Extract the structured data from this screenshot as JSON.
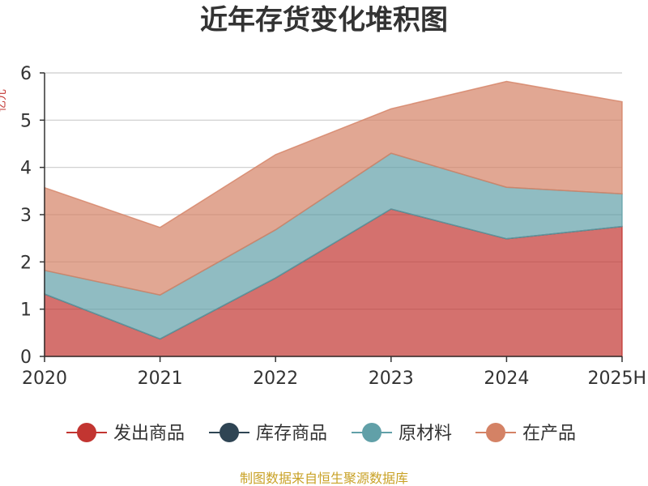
{
  "chart_data": {
    "type": "area",
    "stacked": true,
    "title": "近年存货变化堆积图",
    "ylabel": "亿元",
    "categories": [
      "2020",
      "2021",
      "2022",
      "2023",
      "2024",
      "2025H"
    ],
    "ylim": [
      0,
      6
    ],
    "yticks": [
      0,
      1,
      2,
      3,
      4,
      5,
      6
    ],
    "series": [
      {
        "name": "发出商品",
        "color": "#c23531",
        "values": [
          1.32,
          0.37,
          1.66,
          3.12,
          2.49,
          2.75
        ]
      },
      {
        "name": "库存商品",
        "color": "#2f4554",
        "values": [
          0.0,
          0.0,
          0.0,
          0.0,
          0.0,
          0.0
        ]
      },
      {
        "name": "原材料",
        "color": "#61a0a8",
        "values": [
          0.5,
          0.93,
          1.02,
          1.18,
          1.09,
          0.69
        ]
      },
      {
        "name": "在产品",
        "color": "#d48265",
        "values": [
          1.75,
          1.43,
          1.59,
          0.94,
          2.24,
          1.95
        ]
      }
    ],
    "source": "制图数据来自恒生聚源数据库"
  }
}
